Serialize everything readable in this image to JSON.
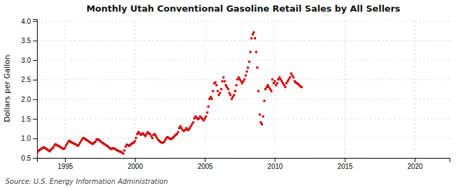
{
  "chart_data": {
    "type": "scatter",
    "title": "Monthly Utah Conventional Gasoline Retail Sales by All Sellers",
    "y_label": "Dollars per Gallon",
    "annotation": "Source: U.S. Energy Information Administration",
    "color": "#cc0000",
    "marker": "square",
    "grid": true,
    "xlim": [
      1993.0,
      2022.5
    ],
    "ylim": [
      0.5,
      4.05
    ],
    "xticks": [
      1995,
      2000,
      2005,
      2010,
      2015,
      2020
    ],
    "yticks": [
      0.5,
      {
        "value": 1.0,
        "label": "1.0"
      },
      1.5,
      {
        "value": 2.0,
        "label": "2.0"
      },
      2.5,
      {
        "value": 3.0,
        "label": "3.0"
      },
      3.5,
      {
        "value": 4.0,
        "label": "4.0"
      }
    ],
    "x": [
      1993.0,
      1993.08,
      1993.17,
      1993.25,
      1993.33,
      1993.42,
      1993.5,
      1993.58,
      1993.67,
      1993.75,
      1993.83,
      1993.92,
      1994.0,
      1994.08,
      1994.17,
      1994.25,
      1994.33,
      1994.42,
      1994.5,
      1994.58,
      1994.67,
      1994.75,
      1994.83,
      1994.92,
      1995.0,
      1995.08,
      1995.17,
      1995.25,
      1995.33,
      1995.42,
      1995.5,
      1995.58,
      1995.67,
      1995.75,
      1995.83,
      1995.92,
      1996.0,
      1996.08,
      1996.17,
      1996.25,
      1996.33,
      1996.42,
      1996.5,
      1996.58,
      1996.67,
      1996.75,
      1996.83,
      1996.92,
      1997.0,
      1997.08,
      1997.17,
      1997.25,
      1997.33,
      1997.42,
      1997.5,
      1997.58,
      1997.67,
      1997.75,
      1997.83,
      1997.92,
      1998.0,
      1998.08,
      1998.17,
      1998.25,
      1998.33,
      1998.42,
      1998.5,
      1998.58,
      1998.67,
      1998.75,
      1998.83,
      1998.92,
      1999.0,
      1999.08,
      1999.17,
      1999.25,
      1999.33,
      1999.42,
      1999.5,
      1999.58,
      1999.67,
      1999.75,
      1999.83,
      1999.92,
      2000.0,
      2000.08,
      2000.17,
      2000.25,
      2000.33,
      2000.42,
      2000.5,
      2000.58,
      2000.67,
      2000.75,
      2000.83,
      2000.92,
      2001.0,
      2001.08,
      2001.17,
      2001.25,
      2001.33,
      2001.42,
      2001.5,
      2001.58,
      2001.67,
      2001.75,
      2001.83,
      2001.92,
      2002.0,
      2002.08,
      2002.17,
      2002.25,
      2002.33,
      2002.42,
      2002.5,
      2002.58,
      2002.67,
      2002.75,
      2002.83,
      2002.92,
      2003.0,
      2003.08,
      2003.17,
      2003.25,
      2003.33,
      2003.42,
      2003.5,
      2003.58,
      2003.67,
      2003.75,
      2003.83,
      2003.92,
      2004.0,
      2004.08,
      2004.17,
      2004.25,
      2004.33,
      2004.42,
      2004.5,
      2004.58,
      2004.67,
      2004.75,
      2004.83,
      2004.92,
      2005.0,
      2005.08,
      2005.17,
      2005.25,
      2005.33,
      2005.42,
      2005.5,
      2005.58,
      2005.67,
      2005.75,
      2005.83,
      2005.92,
      2006.0,
      2006.08,
      2006.17,
      2006.25,
      2006.33,
      2006.42,
      2006.5,
      2006.58,
      2006.67,
      2006.75,
      2006.83,
      2006.92,
      2007.0,
      2007.08,
      2007.17,
      2007.25,
      2007.33,
      2007.42,
      2007.5,
      2007.58,
      2007.67,
      2007.75,
      2007.83,
      2007.92,
      2008.0,
      2008.08,
      2008.17,
      2008.25,
      2008.33,
      2008.42,
      2008.5,
      2008.58,
      2008.67,
      2008.75,
      2008.83,
      2008.92,
      2009.0,
      2009.08,
      2009.17,
      2009.25,
      2009.33,
      2009.42,
      2009.5,
      2009.58,
      2009.67,
      2009.75,
      2009.83,
      2009.92,
      2010.0,
      2010.08,
      2010.17,
      2010.25,
      2010.33,
      2010.42,
      2010.5,
      2010.58,
      2010.67,
      2010.75,
      2010.83,
      2010.92,
      2011.0,
      2011.08,
      2011.17,
      2011.25,
      2011.33,
      2011.42,
      2011.5,
      2011.58,
      2011.67,
      2011.75,
      2011.83,
      2011.92
    ],
    "values": [
      0.63,
      0.67,
      0.7,
      0.72,
      0.74,
      0.76,
      0.77,
      0.75,
      0.73,
      0.71,
      0.69,
      0.67,
      0.71,
      0.74,
      0.77,
      0.82,
      0.85,
      0.83,
      0.81,
      0.8,
      0.78,
      0.76,
      0.74,
      0.73,
      0.76,
      0.82,
      0.87,
      0.92,
      0.94,
      0.91,
      0.89,
      0.88,
      0.86,
      0.85,
      0.83,
      0.81,
      0.84,
      0.89,
      0.94,
      0.99,
      1.01,
      0.99,
      0.97,
      0.95,
      0.93,
      0.91,
      0.89,
      0.87,
      0.86,
      0.89,
      0.91,
      0.96,
      0.98,
      0.96,
      0.94,
      0.91,
      0.89,
      0.87,
      0.85,
      0.83,
      0.81,
      0.79,
      0.76,
      0.74,
      0.73,
      0.75,
      0.74,
      0.73,
      0.71,
      0.69,
      0.68,
      0.66,
      0.66,
      0.64,
      0.61,
      0.69,
      0.79,
      0.84,
      0.83,
      0.81,
      0.83,
      0.86,
      0.88,
      0.89,
      0.93,
      1.01,
      1.11,
      1.16,
      1.13,
      1.09,
      1.11,
      1.13,
      1.09,
      1.06,
      1.11,
      1.16,
      1.13,
      1.11,
      1.06,
      1.01,
      1.09,
      1.11,
      1.06,
      1.01,
      0.96,
      0.94,
      0.91,
      0.89,
      0.89,
      0.91,
      0.96,
      1.01,
      1.03,
      1.01,
      0.99,
      0.98,
      1.0,
      1.03,
      1.06,
      1.09,
      1.11,
      1.16,
      1.26,
      1.31,
      1.26,
      1.21,
      1.19,
      1.21,
      1.26,
      1.23,
      1.21,
      1.26,
      1.31,
      1.36,
      1.41,
      1.51,
      1.56,
      1.53,
      1.49,
      1.51,
      1.56,
      1.53,
      1.49,
      1.46,
      1.51,
      1.56,
      1.66,
      1.81,
      2.01,
      2.06,
      2.01,
      2.21,
      2.41,
      2.43,
      2.36,
      2.21,
      2.11,
      2.16,
      2.26,
      2.46,
      2.56,
      2.46,
      2.36,
      2.31,
      2.26,
      2.16,
      2.11,
      2.01,
      2.06,
      2.11,
      2.21,
      2.36,
      2.51,
      2.56,
      2.51,
      2.46,
      2.41,
      2.46,
      2.51,
      2.61,
      2.71,
      2.81,
      2.96,
      3.21,
      3.56,
      3.66,
      3.71,
      3.56,
      3.21,
      2.81,
      2.21,
      1.61,
      1.41,
      1.36,
      1.56,
      1.96,
      2.26,
      2.31,
      2.36,
      2.31,
      2.26,
      2.21,
      2.51,
      2.41,
      2.46,
      2.36,
      2.41,
      2.51,
      2.56,
      2.51,
      2.46,
      2.41,
      2.36,
      2.31,
      2.41,
      2.46,
      2.51,
      2.56,
      2.66,
      2.61,
      2.56,
      2.46,
      2.43,
      2.41,
      2.39,
      2.36,
      2.33,
      2.31
    ]
  }
}
